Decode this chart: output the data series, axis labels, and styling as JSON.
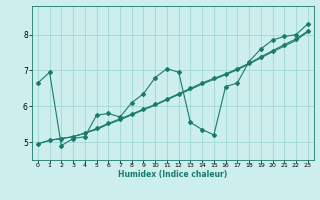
{
  "xlabel": "Humidex (Indice chaleur)",
  "bg_color": "#cceeed",
  "grid_color": "#99d4d0",
  "line_color": "#1a7a6e",
  "xlim": [
    -0.5,
    23.5
  ],
  "ylim": [
    4.5,
    8.8
  ],
  "xticks": [
    0,
    1,
    2,
    3,
    4,
    5,
    6,
    7,
    8,
    9,
    10,
    11,
    12,
    13,
    14,
    15,
    16,
    17,
    18,
    19,
    20,
    21,
    22,
    23
  ],
  "yticks": [
    5,
    6,
    7,
    8
  ],
  "line1_x": [
    0,
    1,
    2,
    3,
    4,
    5,
    6,
    7,
    8,
    9,
    10,
    11,
    12,
    13,
    14,
    15,
    16,
    17,
    18,
    19,
    20,
    21,
    22,
    23
  ],
  "line1_y": [
    6.65,
    6.95,
    4.9,
    5.1,
    5.15,
    5.75,
    5.8,
    5.7,
    6.1,
    6.35,
    6.8,
    7.05,
    6.95,
    5.55,
    5.35,
    5.2,
    6.55,
    6.65,
    7.25,
    7.6,
    7.85,
    7.95,
    8.0,
    8.3
  ],
  "line2_x": [
    0,
    1,
    2,
    3,
    4,
    5,
    6,
    7,
    8,
    9,
    10,
    11,
    12,
    13,
    14,
    15,
    16,
    17,
    18,
    19,
    20,
    21,
    22,
    23
  ],
  "line2_y": [
    4.95,
    5.05,
    5.1,
    5.15,
    5.25,
    5.38,
    5.52,
    5.65,
    5.78,
    5.92,
    6.05,
    6.2,
    6.35,
    6.5,
    6.65,
    6.78,
    6.9,
    7.05,
    7.2,
    7.38,
    7.55,
    7.72,
    7.88,
    8.1
  ],
  "line3_x": [
    0,
    1,
    2,
    3,
    4,
    5,
    6,
    7,
    8,
    9,
    10,
    11,
    12,
    13,
    14,
    15,
    16,
    17,
    18,
    19,
    20,
    21,
    22,
    23
  ],
  "line3_y": [
    4.95,
    5.05,
    5.1,
    5.15,
    5.25,
    5.35,
    5.5,
    5.62,
    5.76,
    5.9,
    6.03,
    6.18,
    6.33,
    6.47,
    6.62,
    6.75,
    6.88,
    7.02,
    7.18,
    7.35,
    7.52,
    7.68,
    7.84,
    8.08
  ]
}
